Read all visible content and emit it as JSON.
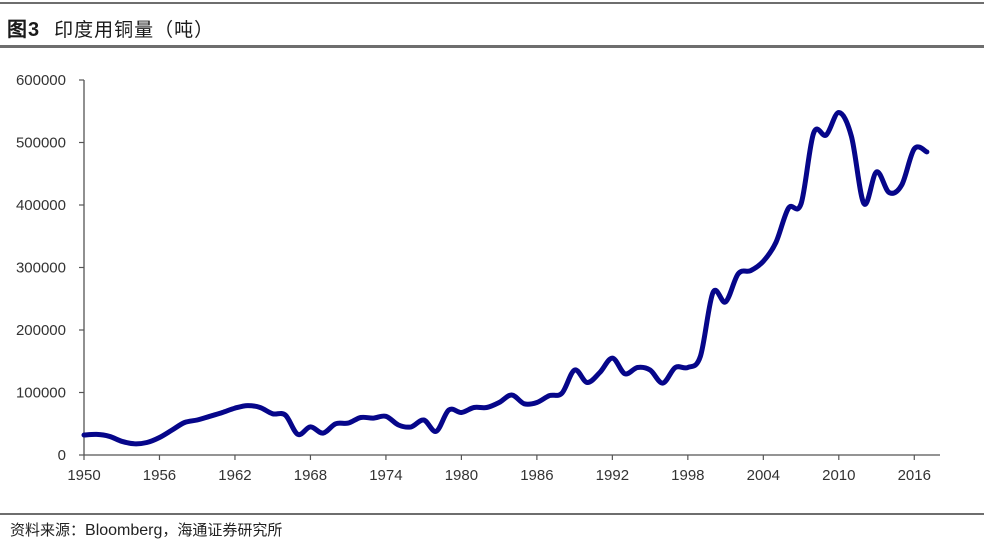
{
  "header": {
    "figure_number": "图3",
    "title": "印度用铜量（吨）"
  },
  "footer": {
    "source_prefix": "资料来源：",
    "source_en": "Bloomberg",
    "source_suffix": "，海通证券研究所"
  },
  "colors": {
    "line": "#06068a",
    "axis": "#555555",
    "rule": "#6e6e6e"
  },
  "chart_data": {
    "type": "line",
    "title": "印度用铜量（吨）",
    "xlabel": "",
    "ylabel": "",
    "ylim": [
      0,
      600000
    ],
    "xlim": [
      1950,
      2018
    ],
    "grid": false,
    "legend": null,
    "yticks": [
      0,
      100000,
      200000,
      300000,
      400000,
      500000,
      600000
    ],
    "ytick_labels": [
      "0",
      "100000",
      "200000",
      "300000",
      "400000",
      "500000",
      "600000"
    ],
    "xticks": [
      1950,
      1956,
      1962,
      1968,
      1974,
      1980,
      1986,
      1992,
      1998,
      2004,
      2010,
      2016
    ],
    "xtick_labels": [
      "1950",
      "1956",
      "1962",
      "1968",
      "1974",
      "1980",
      "1986",
      "1992",
      "1998",
      "2004",
      "2010",
      "2016"
    ],
    "series": [
      {
        "name": "印度用铜量",
        "x": [
          1950,
          1951,
          1952,
          1953,
          1954,
          1955,
          1956,
          1957,
          1958,
          1959,
          1960,
          1961,
          1962,
          1963,
          1964,
          1965,
          1966,
          1967,
          1968,
          1969,
          1970,
          1971,
          1972,
          1973,
          1974,
          1975,
          1976,
          1977,
          1978,
          1979,
          1980,
          1981,
          1982,
          1983,
          1984,
          1985,
          1986,
          1987,
          1988,
          1989,
          1990,
          1991,
          1992,
          1993,
          1994,
          1995,
          1996,
          1997,
          1998,
          1999,
          2000,
          2001,
          2002,
          2003,
          2004,
          2005,
          2006,
          2007,
          2008,
          2009,
          2010,
          2011,
          2012,
          2013,
          2014,
          2015,
          2016,
          2017
        ],
        "values": [
          32000,
          33000,
          30000,
          22000,
          18000,
          20000,
          28000,
          40000,
          52000,
          56000,
          62000,
          68000,
          75000,
          79000,
          76000,
          66000,
          64000,
          33000,
          45000,
          35000,
          50000,
          51000,
          60000,
          59000,
          62000,
          48000,
          45000,
          56000,
          38000,
          72000,
          68000,
          76000,
          76000,
          84000,
          96000,
          82000,
          84000,
          95000,
          99000,
          136000,
          116000,
          132000,
          155000,
          130000,
          140000,
          136000,
          115000,
          140000,
          140000,
          158000,
          260000,
          245000,
          290000,
          295000,
          310000,
          340000,
          395000,
          402000,
          515000,
          512000,
          548000,
          510000,
          402000,
          453000,
          420000,
          432000,
          490000,
          485000
        ]
      }
    ]
  }
}
